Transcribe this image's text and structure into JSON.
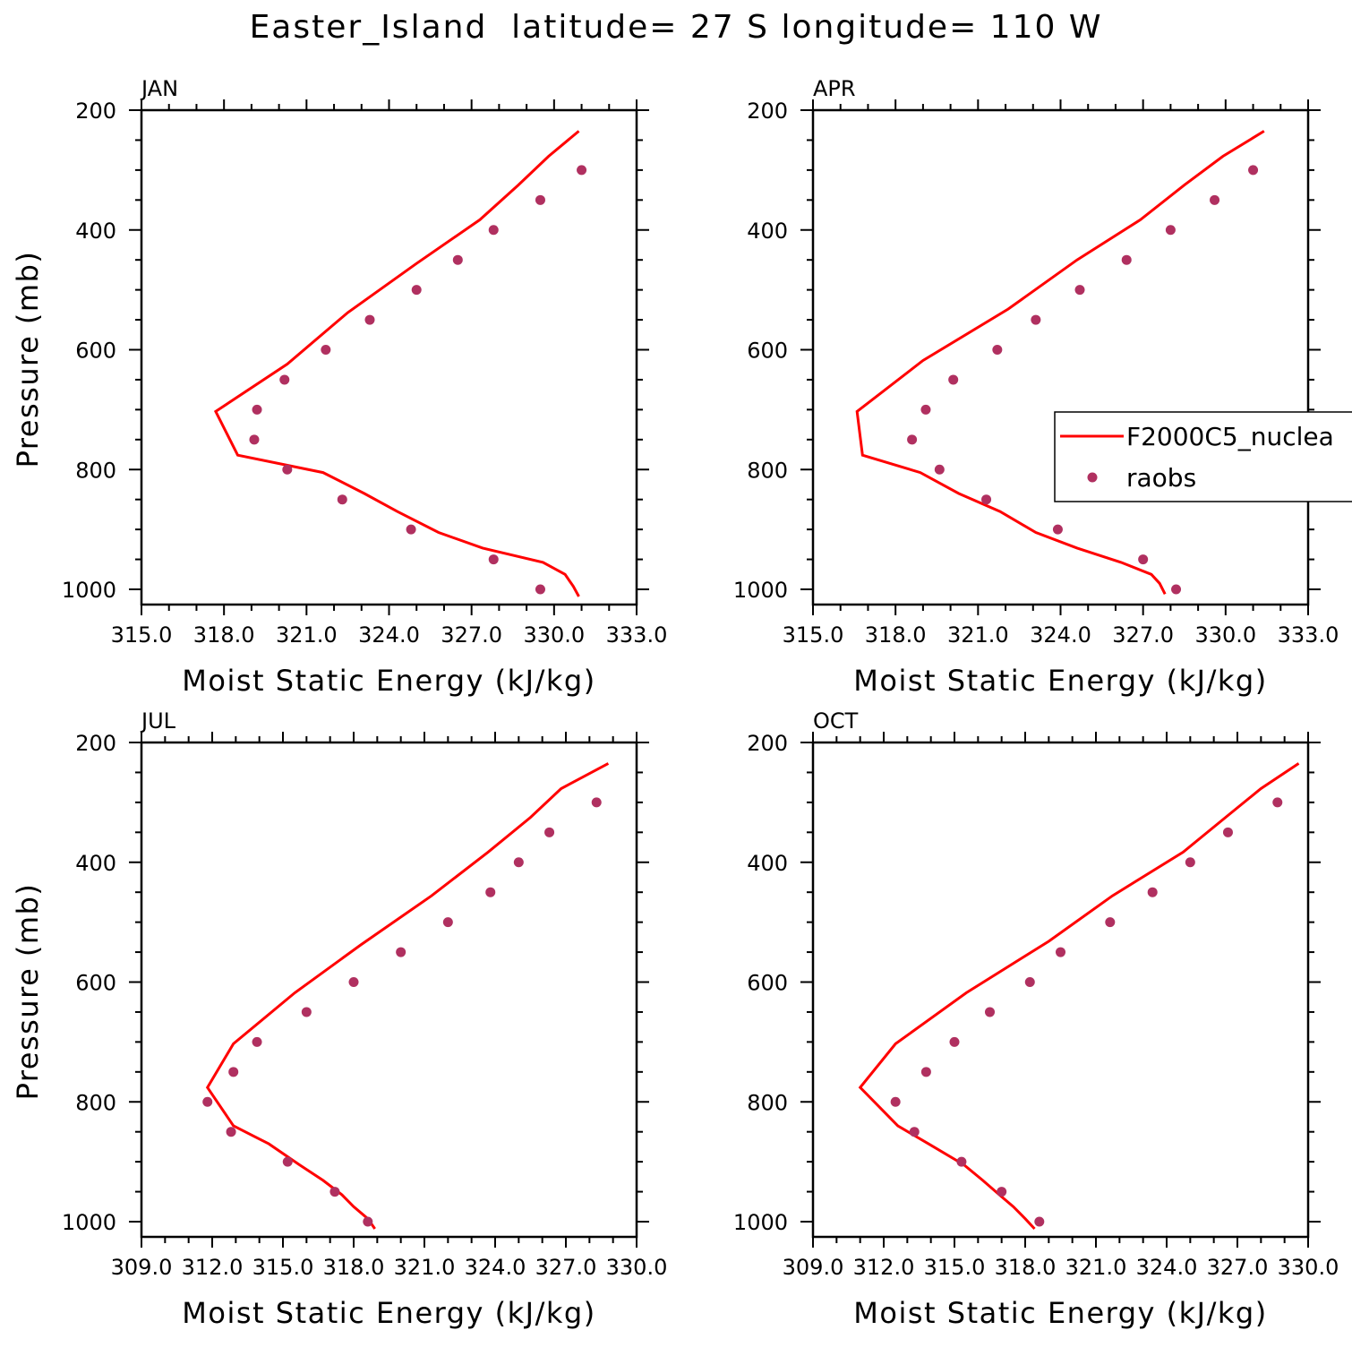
{
  "title": "Easter_Island  latitude= 27 S longitude= 110 W",
  "legend": {
    "model_label": "F2000C5_nuclea",
    "obs_label": "raobs"
  },
  "colors": {
    "model": "#ff0000",
    "obs": "#b03060"
  },
  "chart_data": [
    {
      "type": "line",
      "panel_label": "JAN",
      "xlabel": "Moist Static Energy (kJ/kg)",
      "ylabel": "Pressure (mb)",
      "xlim": [
        315.0,
        333.0
      ],
      "ylim": [
        1000,
        200
      ],
      "x_ticks": [
        "315.0",
        "318.0",
        "321.0",
        "324.0",
        "327.0",
        "330.0",
        "333.0"
      ],
      "y_ticks": [
        "200",
        "400",
        "600",
        "800",
        "1000"
      ],
      "model": {
        "name": "F2000C5_nuclea",
        "pressure": [
          1012,
          995,
          975,
          955,
          931,
          905,
          870,
          840,
          805,
          776,
          703,
          624,
          538,
          456,
          383,
          325,
          277,
          235
        ],
        "mse": [
          330.9,
          330.7,
          330.4,
          329.6,
          327.4,
          325.8,
          324.3,
          323.1,
          321.6,
          318.5,
          317.7,
          320.3,
          322.5,
          325.0,
          327.3,
          328.7,
          329.8,
          330.9
        ]
      },
      "raobs": {
        "name": "raobs",
        "pressure": [
          1000,
          950,
          900,
          850,
          800,
          750,
          700,
          650,
          600,
          550,
          500,
          450,
          400,
          350,
          300
        ],
        "mse": [
          329.5,
          327.8,
          324.8,
          322.3,
          320.3,
          319.1,
          319.2,
          320.2,
          321.7,
          323.3,
          325.0,
          326.5,
          327.8,
          329.5,
          331.0
        ]
      }
    },
    {
      "type": "line",
      "panel_label": "APR",
      "xlabel": "Moist Static Energy (kJ/kg)",
      "ylabel": "",
      "xlim": [
        315.0,
        333.0
      ],
      "ylim": [
        1000,
        200
      ],
      "x_ticks": [
        "315.0",
        "318.0",
        "321.0",
        "324.0",
        "327.0",
        "330.0",
        "333.0"
      ],
      "y_ticks": [
        "200",
        "400",
        "600",
        "800",
        "1000"
      ],
      "model": {
        "name": "F2000C5_nuclea",
        "pressure": [
          1008,
          990,
          975,
          955,
          931,
          905,
          870,
          840,
          805,
          776,
          703,
          618,
          532,
          450,
          383,
          325,
          277,
          235
        ],
        "mse": [
          327.8,
          327.6,
          327.3,
          326.2,
          324.6,
          323.1,
          321.8,
          320.3,
          318.9,
          316.8,
          316.6,
          319.0,
          322.1,
          324.6,
          326.9,
          328.5,
          329.9,
          331.4
        ]
      },
      "raobs": {
        "name": "raobs",
        "pressure": [
          1000,
          950,
          900,
          850,
          800,
          750,
          700,
          650,
          600,
          550,
          500,
          450,
          400,
          350,
          300
        ],
        "mse": [
          328.2,
          327.0,
          323.9,
          321.3,
          319.6,
          318.6,
          319.1,
          320.1,
          321.7,
          323.1,
          324.7,
          326.4,
          328.0,
          329.6,
          331.0
        ]
      }
    },
    {
      "type": "line",
      "panel_label": "JUL",
      "xlabel": "Moist Static Energy (kJ/kg)",
      "ylabel": "Pressure (mb)",
      "xlim": [
        309.0,
        330.0
      ],
      "ylim": [
        1000,
        200
      ],
      "x_ticks": [
        "309.0",
        "312.0",
        "315.0",
        "318.0",
        "321.0",
        "324.0",
        "327.0",
        "330.0"
      ],
      "y_ticks": [
        "200",
        "400",
        "600",
        "800",
        "1000"
      ],
      "model": {
        "name": "F2000C5_nuclea",
        "pressure": [
          1012,
          995,
          975,
          955,
          931,
          905,
          870,
          840,
          776,
          703,
          618,
          538,
          456,
          383,
          325,
          277,
          235
        ],
        "mse": [
          318.9,
          318.6,
          318.0,
          317.5,
          316.7,
          315.7,
          314.4,
          312.9,
          311.8,
          312.9,
          315.5,
          318.3,
          321.3,
          323.7,
          325.5,
          326.8,
          328.8
        ]
      },
      "raobs": {
        "name": "raobs",
        "pressure": [
          1000,
          950,
          900,
          850,
          800,
          750,
          700,
          650,
          600,
          550,
          500,
          450,
          400,
          350,
          300
        ],
        "mse": [
          318.6,
          317.2,
          315.2,
          312.8,
          311.8,
          312.9,
          313.9,
          316.0,
          318.0,
          320.0,
          322.0,
          323.8,
          325.0,
          326.3,
          328.3
        ]
      }
    },
    {
      "type": "line",
      "panel_label": "OCT",
      "xlabel": "Moist Static Energy (kJ/kg)",
      "ylabel": "",
      "xlim": [
        309.0,
        330.0
      ],
      "ylim": [
        1000,
        200
      ],
      "x_ticks": [
        "309.0",
        "312.0",
        "315.0",
        "318.0",
        "321.0",
        "324.0",
        "327.0",
        "330.0"
      ],
      "y_ticks": [
        "200",
        "400",
        "600",
        "800",
        "1000"
      ],
      "model": {
        "name": "F2000C5_nuclea",
        "pressure": [
          1012,
          995,
          975,
          955,
          931,
          905,
          870,
          840,
          776,
          703,
          618,
          532,
          456,
          383,
          325,
          277,
          235
        ],
        "mse": [
          318.4,
          318.0,
          317.5,
          316.9,
          316.2,
          315.4,
          313.9,
          312.6,
          311.0,
          312.5,
          315.5,
          319.0,
          321.7,
          324.7,
          326.5,
          328.0,
          329.6
        ]
      },
      "raobs": {
        "name": "raobs",
        "pressure": [
          1000,
          950,
          900,
          850,
          800,
          750,
          700,
          650,
          600,
          550,
          500,
          450,
          400,
          350,
          300
        ],
        "mse": [
          318.6,
          317.0,
          315.3,
          313.3,
          312.5,
          313.8,
          315.0,
          316.5,
          318.2,
          319.5,
          321.6,
          323.4,
          325.0,
          326.6,
          328.7
        ]
      }
    }
  ]
}
